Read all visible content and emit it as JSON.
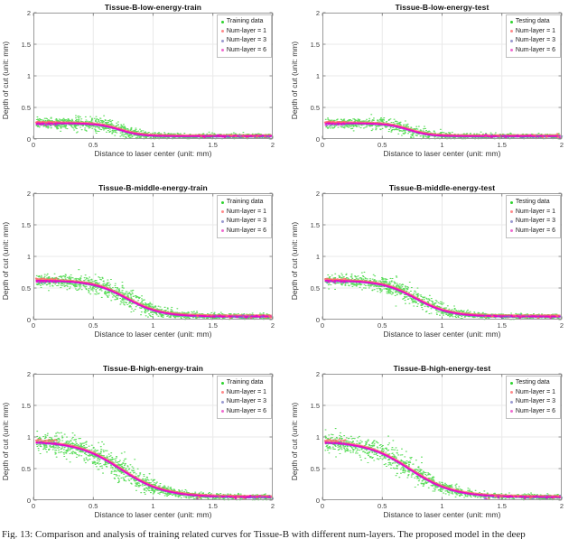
{
  "caption": "Fig. 13: Comparison and analysis of training related curves for Tissue-B with different num-layers. The proposed model in the deep",
  "colors": {
    "data_points": "#2ed32e",
    "num_layer_1": "#ff6a6a",
    "num_layer_3": "#6a6ae0",
    "num_layer_6": "#ef00c8",
    "grid": "#e9e9e9",
    "axis_box": "#9a9a9a",
    "tick": "#707070"
  },
  "axes": {
    "xlabel": "Distance to laser center (unit: mm)",
    "ylabel": "Depth of cut (unit: mm)",
    "x_ticks": [
      0,
      0.5,
      1,
      1.5,
      2
    ],
    "y_ticks": [
      0,
      0.5,
      1,
      1.5,
      2
    ],
    "xlim": [
      0,
      2
    ],
    "ylim": [
      0,
      2
    ],
    "grid": true,
    "legend_position": "top-right"
  },
  "chart_data": [
    {
      "type": "scatter",
      "title": "Tissue-B-low-energy-train",
      "legend": [
        {
          "label": "Training data",
          "color": "#2ed32e"
        },
        {
          "label": "Num-layer = 1",
          "color": "#ff8a8a"
        },
        {
          "label": "Num-layer = 3",
          "color": "#9a9ad0"
        },
        {
          "label": "Num-layer = 6",
          "color": "#f06ad0"
        }
      ],
      "sigmoid": {
        "plateau": 0.25,
        "floor": 0.045,
        "center": 0.72,
        "steepness": 11
      },
      "curve_points": {
        "x": [
          0,
          0.25,
          0.5,
          0.75,
          1,
          1.25,
          1.5,
          1.75,
          2
        ],
        "y": [
          0.25,
          0.25,
          0.23,
          0.13,
          0.055,
          0.047,
          0.045,
          0.045,
          0.045
        ]
      },
      "noise": {
        "plateau_sd": 0.04,
        "transition_sd": 0.025,
        "tail_sd": 0.018
      },
      "n_points": 1500,
      "seed": 11
    },
    {
      "type": "scatter",
      "title": "Tissue-B-low-energy-test",
      "legend": [
        {
          "label": "Testing data",
          "color": "#2ed32e"
        },
        {
          "label": "Num-layer = 1",
          "color": "#ff8a8a"
        },
        {
          "label": "Num-layer = 3",
          "color": "#9a9ad0"
        },
        {
          "label": "Num-layer = 6",
          "color": "#f06ad0"
        }
      ],
      "sigmoid": {
        "plateau": 0.25,
        "floor": 0.045,
        "center": 0.72,
        "steepness": 11
      },
      "curve_points": {
        "x": [
          0,
          0.25,
          0.5,
          0.75,
          1,
          1.25,
          1.5,
          1.75,
          2
        ],
        "y": [
          0.25,
          0.25,
          0.23,
          0.13,
          0.055,
          0.047,
          0.045,
          0.045,
          0.045
        ]
      },
      "noise": {
        "plateau_sd": 0.035,
        "transition_sd": 0.025,
        "tail_sd": 0.018
      },
      "n_points": 1300,
      "seed": 22
    },
    {
      "type": "scatter",
      "title": "Tissue-B-middle-energy-train",
      "legend": [
        {
          "label": "Training data",
          "color": "#2ed32e"
        },
        {
          "label": "Num-layer = 1",
          "color": "#ff8a8a"
        },
        {
          "label": "Num-layer = 3",
          "color": "#9a9ad0"
        },
        {
          "label": "Num-layer = 6",
          "color": "#f06ad0"
        }
      ],
      "sigmoid": {
        "plateau": 0.62,
        "floor": 0.05,
        "center": 0.78,
        "steepness": 7
      },
      "curve_points": {
        "x": [
          0,
          0.25,
          0.5,
          0.75,
          1,
          1.25,
          1.5,
          1.75,
          2
        ],
        "y": [
          0.62,
          0.61,
          0.55,
          0.39,
          0.15,
          0.07,
          0.055,
          0.05,
          0.05
        ]
      },
      "noise": {
        "plateau_sd": 0.045,
        "transition_sd": 0.045,
        "tail_sd": 0.02
      },
      "n_points": 1500,
      "seed": 33
    },
    {
      "type": "scatter",
      "title": "Tissue-B-middle-energy-test",
      "legend": [
        {
          "label": "Testing data",
          "color": "#2ed32e"
        },
        {
          "label": "Num-layer = 1",
          "color": "#ff8a8a"
        },
        {
          "label": "Num-layer = 3",
          "color": "#9a9ad0"
        },
        {
          "label": "Num-layer = 6",
          "color": "#f06ad0"
        }
      ],
      "sigmoid": {
        "plateau": 0.62,
        "floor": 0.05,
        "center": 0.78,
        "steepness": 7
      },
      "curve_points": {
        "x": [
          0,
          0.25,
          0.5,
          0.75,
          1,
          1.25,
          1.5,
          1.75,
          2
        ],
        "y": [
          0.62,
          0.61,
          0.55,
          0.39,
          0.15,
          0.07,
          0.055,
          0.05,
          0.05
        ]
      },
      "noise": {
        "plateau_sd": 0.042,
        "transition_sd": 0.045,
        "tail_sd": 0.02
      },
      "n_points": 1300,
      "seed": 44
    },
    {
      "type": "scatter",
      "title": "Tissue-B-high-energy-train",
      "legend": [
        {
          "label": "Training data",
          "color": "#2ed32e"
        },
        {
          "label": "Num-layer = 1",
          "color": "#ff8a8a"
        },
        {
          "label": "Num-layer = 3",
          "color": "#9a9ad0"
        },
        {
          "label": "Num-layer = 6",
          "color": "#f06ad0"
        }
      ],
      "sigmoid": {
        "plateau": 0.93,
        "floor": 0.05,
        "center": 0.73,
        "steepness": 5.5
      },
      "curve_points": {
        "x": [
          0,
          0.25,
          0.5,
          0.75,
          1,
          1.25,
          1.5,
          1.75,
          2
        ],
        "y": [
          0.92,
          0.9,
          0.78,
          0.51,
          0.22,
          0.1,
          0.065,
          0.055,
          0.05
        ]
      },
      "noise": {
        "plateau_sd": 0.075,
        "transition_sd": 0.05,
        "tail_sd": 0.02
      },
      "n_points": 1500,
      "seed": 55
    },
    {
      "type": "scatter",
      "title": "Tissue-B-high-energy-test",
      "legend": [
        {
          "label": "Testing data",
          "color": "#2ed32e"
        },
        {
          "label": "Num-layer = 1",
          "color": "#ff8a8a"
        },
        {
          "label": "Num-layer = 3",
          "color": "#9a9ad0"
        },
        {
          "label": "Num-layer = 6",
          "color": "#f06ad0"
        }
      ],
      "sigmoid": {
        "plateau": 0.93,
        "floor": 0.05,
        "center": 0.73,
        "steepness": 5.5
      },
      "curve_points": {
        "x": [
          0,
          0.25,
          0.5,
          0.75,
          1,
          1.25,
          1.5,
          1.75,
          2
        ],
        "y": [
          0.92,
          0.9,
          0.78,
          0.51,
          0.22,
          0.1,
          0.065,
          0.055,
          0.05
        ]
      },
      "noise": {
        "plateau_sd": 0.07,
        "transition_sd": 0.05,
        "tail_sd": 0.02
      },
      "n_points": 1300,
      "seed": 66
    }
  ]
}
